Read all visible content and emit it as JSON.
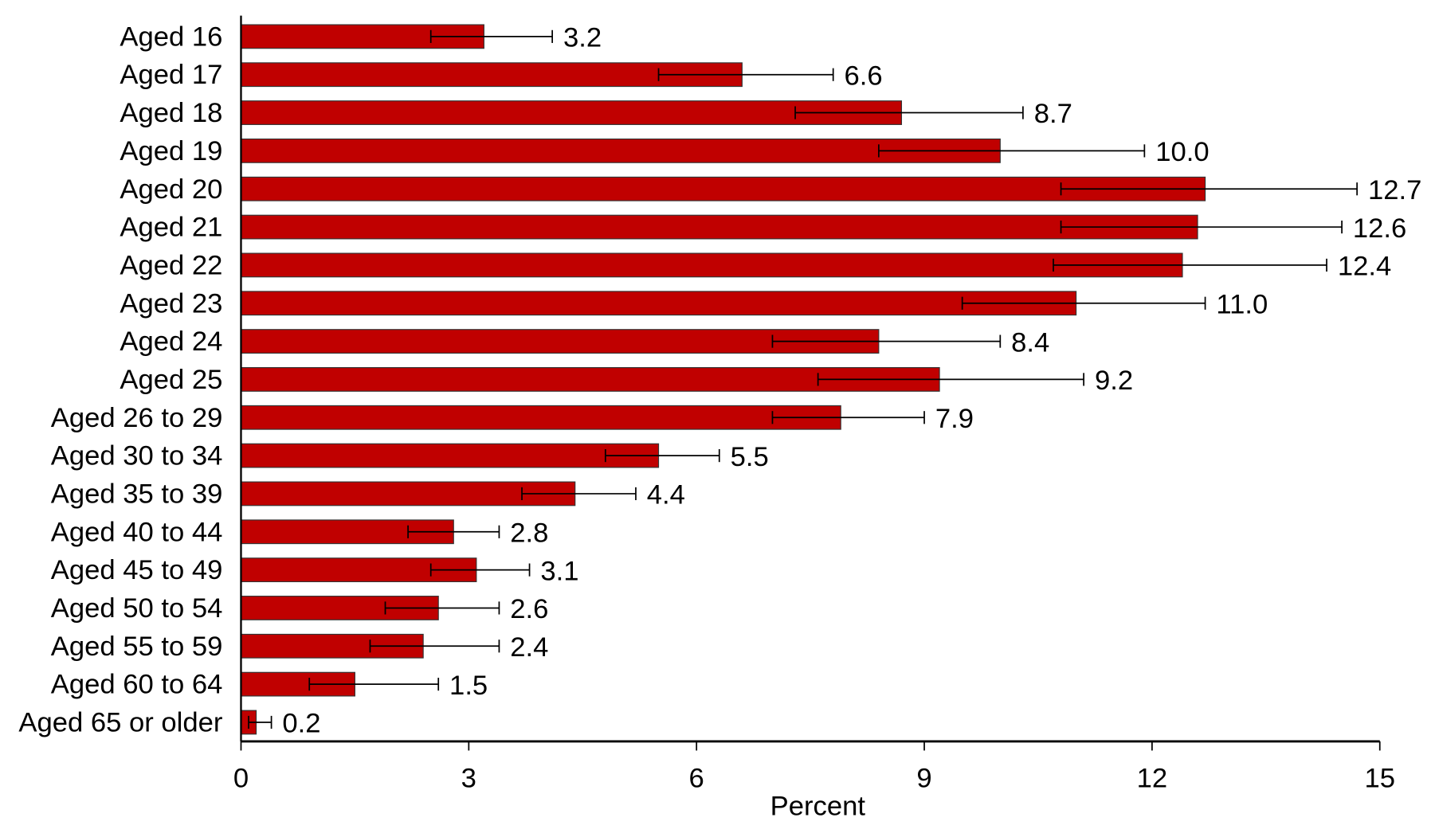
{
  "chart_data": {
    "type": "bar",
    "orientation": "horizontal",
    "title": "",
    "xlabel": "Percent",
    "ylabel": "",
    "xlim": [
      0,
      15
    ],
    "xticks": [
      0,
      3,
      6,
      9,
      12,
      15
    ],
    "grid": false,
    "bar_color": "#c00000",
    "categories": [
      "Aged 16",
      "Aged 17",
      "Aged 18",
      "Aged 19",
      "Aged 20",
      "Aged 21",
      "Aged 22",
      "Aged 23",
      "Aged 24",
      "Aged 25",
      "Aged 26 to 29",
      "Aged 30 to 34",
      "Aged 35 to 39",
      "Aged 40 to 44",
      "Aged 45 to 49",
      "Aged 50 to 54",
      "Aged 55 to 59",
      "Aged 60 to 64",
      "Aged 65 or older"
    ],
    "values": [
      3.2,
      6.6,
      8.7,
      10.0,
      12.7,
      12.6,
      12.4,
      11.0,
      8.4,
      9.2,
      7.9,
      5.5,
      4.4,
      2.8,
      3.1,
      2.6,
      2.4,
      1.5,
      0.2
    ],
    "data_labels": [
      "3.2",
      "6.6",
      "8.7",
      "10.0",
      "12.7",
      "12.6",
      "12.4",
      "11.0",
      "8.4",
      "9.2",
      "7.9",
      "5.5",
      "4.4",
      "2.8",
      "3.1",
      "2.6",
      "2.4",
      "1.5",
      "0.2"
    ],
    "error_low": [
      2.5,
      5.5,
      7.3,
      8.4,
      10.8,
      10.8,
      10.7,
      9.5,
      7.0,
      7.6,
      7.0,
      4.8,
      3.7,
      2.2,
      2.5,
      1.9,
      1.7,
      0.9,
      0.1
    ],
    "error_high": [
      4.1,
      7.8,
      10.3,
      11.9,
      14.7,
      14.5,
      14.3,
      12.7,
      10.0,
      11.1,
      9.0,
      6.3,
      5.2,
      3.4,
      3.8,
      3.4,
      3.4,
      2.6,
      0.4
    ]
  }
}
